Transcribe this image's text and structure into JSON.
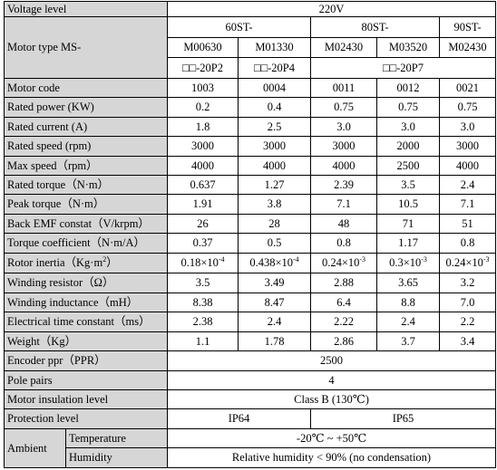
{
  "voltage": {
    "label": "Voltage level",
    "value": "220V"
  },
  "motor_type": {
    "label": "Motor type MS-",
    "groups": [
      "60ST-",
      "80ST-",
      "90ST-"
    ],
    "models": [
      "M00630",
      "M01330",
      "M02430",
      "M03520",
      "M02430"
    ],
    "suffixes": [
      "□□-20P2",
      "□□-20P4",
      "□□-20P7"
    ]
  },
  "rows": [
    {
      "label": "Motor code",
      "values": [
        "1003",
        "0004",
        "0011",
        "0012",
        "0021"
      ]
    },
    {
      "label": "Rated power (KW)",
      "values": [
        "0.2",
        "0.4",
        "0.75",
        "0.75",
        "0.75"
      ]
    },
    {
      "label": "Rated current (A)",
      "values": [
        "1.8",
        "2.5",
        "3.0",
        "3.0",
        "3.0"
      ]
    },
    {
      "label": "Rated speed (rpm)",
      "values": [
        "3000",
        "3000",
        "3000",
        "2000",
        "3000"
      ]
    },
    {
      "label": "Max speed（rpm）",
      "values": [
        "4000",
        "4000",
        "4000",
        "2500",
        "4000"
      ]
    },
    {
      "label": "Rated torque（N·m）",
      "values": [
        "0.637",
        "1.27",
        "2.39",
        "3.5",
        "2.4"
      ]
    },
    {
      "label": "Peak torque（N·m）",
      "values": [
        "1.91",
        "3.8",
        "7.1",
        "10.5",
        "7.1"
      ]
    },
    {
      "label": "Back EMF constat（V/krpm）",
      "values": [
        "26",
        "28",
        "48",
        "71",
        "51"
      ]
    },
    {
      "label": "Torque coefficient（N·m/A）",
      "values": [
        "0.37",
        "0.5",
        "0.8",
        "1.17",
        "0.8"
      ]
    }
  ],
  "inertia": {
    "label": "Rotor inertia（Kg·m",
    "label_sup": "2",
    "label_end": "）",
    "values": [
      {
        "base": "0.18×10",
        "exp": "-4"
      },
      {
        "base": "0.438×10",
        "exp": "-4"
      },
      {
        "base": "0.24×10",
        "exp": "-3"
      },
      {
        "base": "0.3×10",
        "exp": "-3"
      },
      {
        "base": "0.24×10",
        "exp": "-3"
      }
    ]
  },
  "rows2": [
    {
      "label": "Winding resistor（Ω）",
      "values": [
        "3.5",
        "3.49",
        "2.88",
        "3.65",
        "3.2"
      ]
    },
    {
      "label": "Winding inductance（mH）",
      "values": [
        "8.38",
        "8.47",
        "6.4",
        "8.8",
        "7.0"
      ]
    },
    {
      "label": "Electrical time constant（ms）",
      "values": [
        "2.38",
        "2.4",
        "2.22",
        "2.4",
        "2.2"
      ]
    },
    {
      "label": "Weight（Kg）",
      "values": [
        "1.1",
        "1.78",
        "2.86",
        "3.7",
        "3.4"
      ]
    }
  ],
  "encoder": {
    "label": "Encoder ppr（PPR）",
    "value": "2500"
  },
  "pole_pairs": {
    "label": "Pole pairs",
    "value": "4"
  },
  "insulation": {
    "label": "Motor insulation level",
    "value": "Class B (130℃)"
  },
  "protection": {
    "label": "Protection level",
    "values": [
      "IP64",
      "IP65"
    ]
  },
  "ambient": {
    "label": "Ambient",
    "temperature": {
      "label": "Temperature",
      "value": "-20℃ ~ +50℃"
    },
    "humidity": {
      "label": "Humidity",
      "value": "Relative humidity < 90% (no condensation)"
    }
  }
}
